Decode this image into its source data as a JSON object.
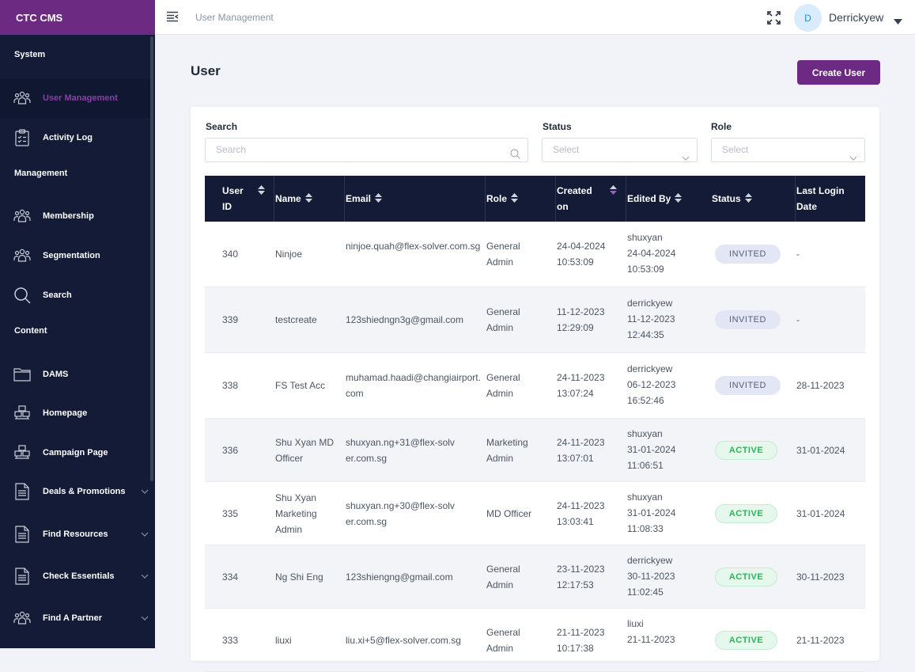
{
  "app": {
    "brand": "CTC CMS"
  },
  "sidebar": {
    "sections": [
      "System",
      "Management",
      "Content"
    ],
    "items": [
      {
        "label": "User Management",
        "icon": "users-icon",
        "active": true
      },
      {
        "label": "Activity Log",
        "icon": "clipboard-icon"
      },
      {
        "label": "Membership",
        "icon": "users-icon"
      },
      {
        "label": "Segmentation",
        "icon": "users-icon"
      },
      {
        "label": "Search",
        "icon": "search-icon"
      },
      {
        "label": "DAMS",
        "icon": "folder-icon"
      },
      {
        "label": "Homepage",
        "icon": "boxes-icon"
      },
      {
        "label": "Campaign Page",
        "icon": "boxes-icon"
      },
      {
        "label": "Deals & Promotions",
        "icon": "document-icon",
        "expandable": true
      },
      {
        "label": "Find Resources",
        "icon": "document-icon",
        "expandable": true
      },
      {
        "label": "Check Essentials",
        "icon": "document-icon",
        "expandable": true
      },
      {
        "label": "Find A Partner",
        "icon": "users-icon",
        "expandable": true
      }
    ]
  },
  "header": {
    "breadcrumb": "User Management",
    "user_initial": "D",
    "user_name": "Derrickyew"
  },
  "page": {
    "title": "User",
    "create_label": "Create User"
  },
  "filters": {
    "search_label": "Search",
    "search_placeholder": "Search",
    "status_label": "Status",
    "status_placeholder": "Select",
    "role_label": "Role",
    "role_placeholder": "Select"
  },
  "table": {
    "columns": [
      "User ID",
      "Name",
      "Email",
      "Role",
      "Created on",
      "Edited By",
      "Status",
      "Last Login Date"
    ],
    "rows": [
      {
        "id": "340",
        "name": "Ninjoe",
        "email": "ninjoe.quah@flex-solver.com.sg",
        "role": "General Admin",
        "created": "24-04-2024 10:53:09",
        "edited_by": "shuxyan",
        "edited_on": "24-04-2024 10:53:09",
        "status": "INVITED",
        "last_login": "-"
      },
      {
        "id": "339",
        "name": "testcreate",
        "email": "123shiedngn3g@gmail.com",
        "role": "General Admin",
        "created": "11-12-2023 12:29:09",
        "edited_by": "derrickyew",
        "edited_on": "11-12-2023 12:44:35",
        "status": "INVITED",
        "last_login": "-"
      },
      {
        "id": "338",
        "name": "FS Test Acc",
        "email": "muhamad.haadi@changiairport.com",
        "role": "General Admin",
        "created": "24-11-2023 13:07:24",
        "edited_by": "derrickyew",
        "edited_on": "06-12-2023 16:52:46",
        "status": "INVITED",
        "last_login": "28-11-2023"
      },
      {
        "id": "336",
        "name": "Shu Xyan MD Officer",
        "email": "shuxyan.ng+31@flex-solver.com.sg",
        "role": "Marketing Admin",
        "created": "24-11-2023 13:07:01",
        "edited_by": "shuxyan",
        "edited_on": "31-01-2024 11:06:51",
        "status": "ACTIVE",
        "last_login": "31-01-2024"
      },
      {
        "id": "335",
        "name": "Shu Xyan Marketing Admin",
        "email": "shuxyan.ng+30@flex-solver.com.sg",
        "role": "MD Officer",
        "created": "24-11-2023 13:03:41",
        "edited_by": "shuxyan",
        "edited_on": "31-01-2024 11:08:33",
        "status": "ACTIVE",
        "last_login": "31-01-2024"
      },
      {
        "id": "334",
        "name": "Ng Shi Eng",
        "email": "123shiengng@gmail.com",
        "role": "General Admin",
        "created": "23-11-2023 12:17:53",
        "edited_by": "derrickyew",
        "edited_on": "30-11-2023 11:02:45",
        "status": "ACTIVE",
        "last_login": "30-11-2023"
      },
      {
        "id": "333",
        "name": "liuxi",
        "email": "liu.xi+5@flex-solver.com.sg",
        "role": "General Admin",
        "created": "21-11-2023 10:17:38",
        "edited_by": "liuxi",
        "edited_on": "21-11-2023",
        "status": "ACTIVE",
        "last_login": "21-11-2023"
      }
    ]
  }
}
